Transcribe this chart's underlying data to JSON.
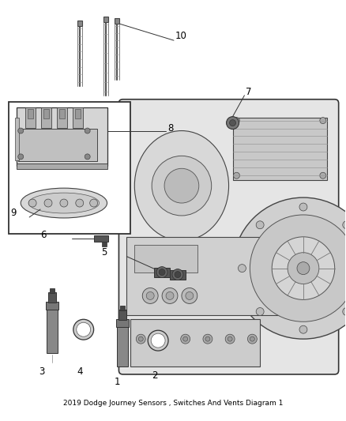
{
  "title": "2019 Dodge Journey Sensors , Switches And Vents Diagram 1",
  "background_color": "#ffffff",
  "fig_width": 4.38,
  "fig_height": 5.33,
  "dpi": 100,
  "line_color": "#333333",
  "text_color": "#000000",
  "label_fontsize": 8.5,
  "bolt_color": "#555555",
  "part_fill": "#c8c8c8",
  "part_edge": "#333333"
}
